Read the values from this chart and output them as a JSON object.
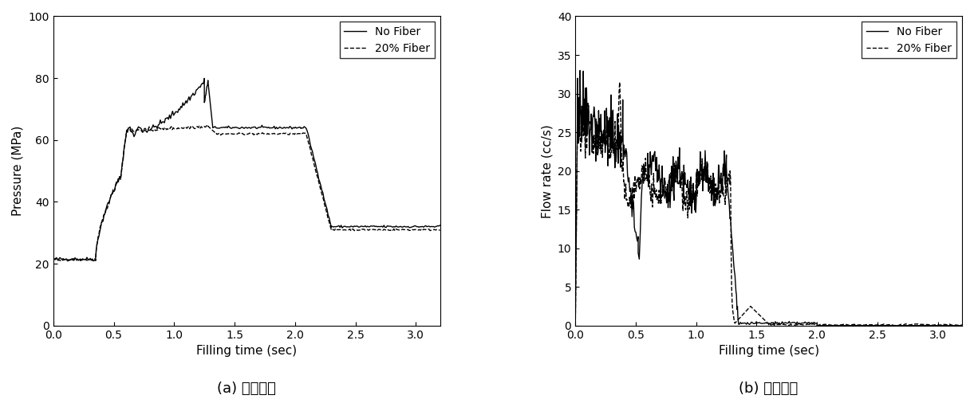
{
  "fig_width": 12.21,
  "fig_height": 5.11,
  "dpi": 100,
  "background_color": "#ffffff",
  "plot1": {
    "xlabel": "Filling time (sec)",
    "ylabel": "Pressure (MPa)",
    "xlim": [
      0.0,
      3.2
    ],
    "ylim": [
      0,
      100
    ],
    "xticks": [
      0.0,
      0.5,
      1.0,
      1.5,
      2.0,
      2.5,
      3.0
    ],
    "yticks": [
      0,
      20,
      40,
      60,
      80,
      100
    ],
    "caption": "(a) 충진압력",
    "legend_labels": [
      "No Fiber",
      "20% Fiber"
    ],
    "legend_styles": [
      "solid",
      "dashed"
    ]
  },
  "plot2": {
    "xlabel": "Filling time (sec)",
    "ylabel": "Flow rate (cc/s)",
    "xlim": [
      0.0,
      3.2
    ],
    "ylim": [
      0,
      40
    ],
    "xticks": [
      0.0,
      0.5,
      1.0,
      1.5,
      2.0,
      2.5,
      3.0
    ],
    "yticks": [
      0,
      5,
      10,
      15,
      20,
      25,
      30,
      35,
      40
    ],
    "caption": "(b) 충진유량",
    "legend_labels": [
      "No Fiber",
      "20% Fiber"
    ],
    "legend_styles": [
      "solid",
      "dashed"
    ]
  }
}
